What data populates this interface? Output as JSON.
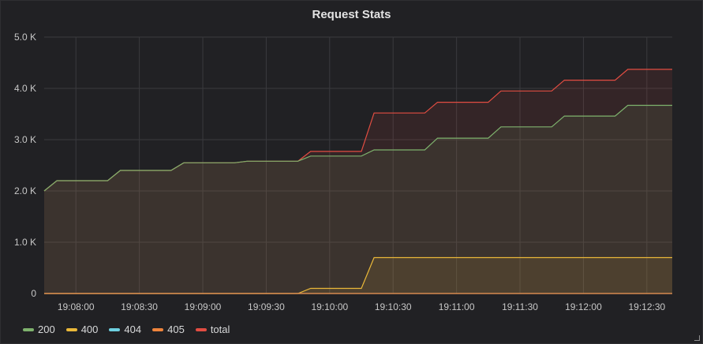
{
  "panel": {
    "title": "Request Stats"
  },
  "chart_data": {
    "type": "area",
    "title": "Request Stats",
    "y_ticks": [
      "0",
      "1.0 K",
      "2.0 K",
      "3.0 K",
      "4.0 K",
      "5.0 K"
    ],
    "ylim": [
      0,
      5000
    ],
    "x_ticks": [
      "19:08:00",
      "19:08:30",
      "19:09:00",
      "19:09:30",
      "19:10:00",
      "19:10:30",
      "19:11:00",
      "19:11:30",
      "19:12:00",
      "19:12:30"
    ],
    "xlim": [
      "19:07:45",
      "19:12:42"
    ],
    "grid": true,
    "legend_position": "bottom-left",
    "series": [
      {
        "name": "total",
        "color": "#e24d42",
        "points": [
          [
            "19:07:45",
            2000
          ],
          [
            "19:07:51",
            2200
          ],
          [
            "19:08:15",
            2200
          ],
          [
            "19:08:21",
            2400
          ],
          [
            "19:08:45",
            2400
          ],
          [
            "19:08:51",
            2550
          ],
          [
            "19:09:15",
            2550
          ],
          [
            "19:09:21",
            2580
          ],
          [
            "19:09:45",
            2580
          ],
          [
            "19:09:51",
            2770
          ],
          [
            "19:10:15",
            2770
          ],
          [
            "19:10:21",
            3520
          ],
          [
            "19:10:45",
            3520
          ],
          [
            "19:10:51",
            3730
          ],
          [
            "19:11:15",
            3730
          ],
          [
            "19:11:21",
            3950
          ],
          [
            "19:11:45",
            3950
          ],
          [
            "19:11:51",
            4160
          ],
          [
            "19:12:15",
            4160
          ],
          [
            "19:12:21",
            4370
          ],
          [
            "19:12:42",
            4370
          ]
        ]
      },
      {
        "name": "200",
        "color": "#7eb26d",
        "points": [
          [
            "19:07:45",
            2000
          ],
          [
            "19:07:51",
            2200
          ],
          [
            "19:08:15",
            2200
          ],
          [
            "19:08:21",
            2400
          ],
          [
            "19:08:45",
            2400
          ],
          [
            "19:08:51",
            2550
          ],
          [
            "19:09:15",
            2550
          ],
          [
            "19:09:21",
            2580
          ],
          [
            "19:09:45",
            2580
          ],
          [
            "19:09:51",
            2680
          ],
          [
            "19:10:15",
            2680
          ],
          [
            "19:10:21",
            2800
          ],
          [
            "19:10:45",
            2800
          ],
          [
            "19:10:51",
            3030
          ],
          [
            "19:11:15",
            3030
          ],
          [
            "19:11:21",
            3250
          ],
          [
            "19:11:45",
            3250
          ],
          [
            "19:11:51",
            3460
          ],
          [
            "19:12:15",
            3460
          ],
          [
            "19:12:21",
            3670
          ],
          [
            "19:12:42",
            3670
          ]
        ]
      },
      {
        "name": "400",
        "color": "#eab839",
        "points": [
          [
            "19:07:45",
            0
          ],
          [
            "19:09:45",
            0
          ],
          [
            "19:09:51",
            100
          ],
          [
            "19:10:15",
            100
          ],
          [
            "19:10:21",
            700
          ],
          [
            "19:12:42",
            700
          ]
        ]
      },
      {
        "name": "404",
        "color": "#6ed0e0",
        "points": [
          [
            "19:07:45",
            0
          ],
          [
            "19:12:42",
            0
          ]
        ]
      },
      {
        "name": "405",
        "color": "#ef843c",
        "points": [
          [
            "19:07:45",
            0
          ],
          [
            "19:12:42",
            0
          ]
        ]
      }
    ],
    "legend_order": [
      "200",
      "400",
      "404",
      "405",
      "total"
    ]
  }
}
